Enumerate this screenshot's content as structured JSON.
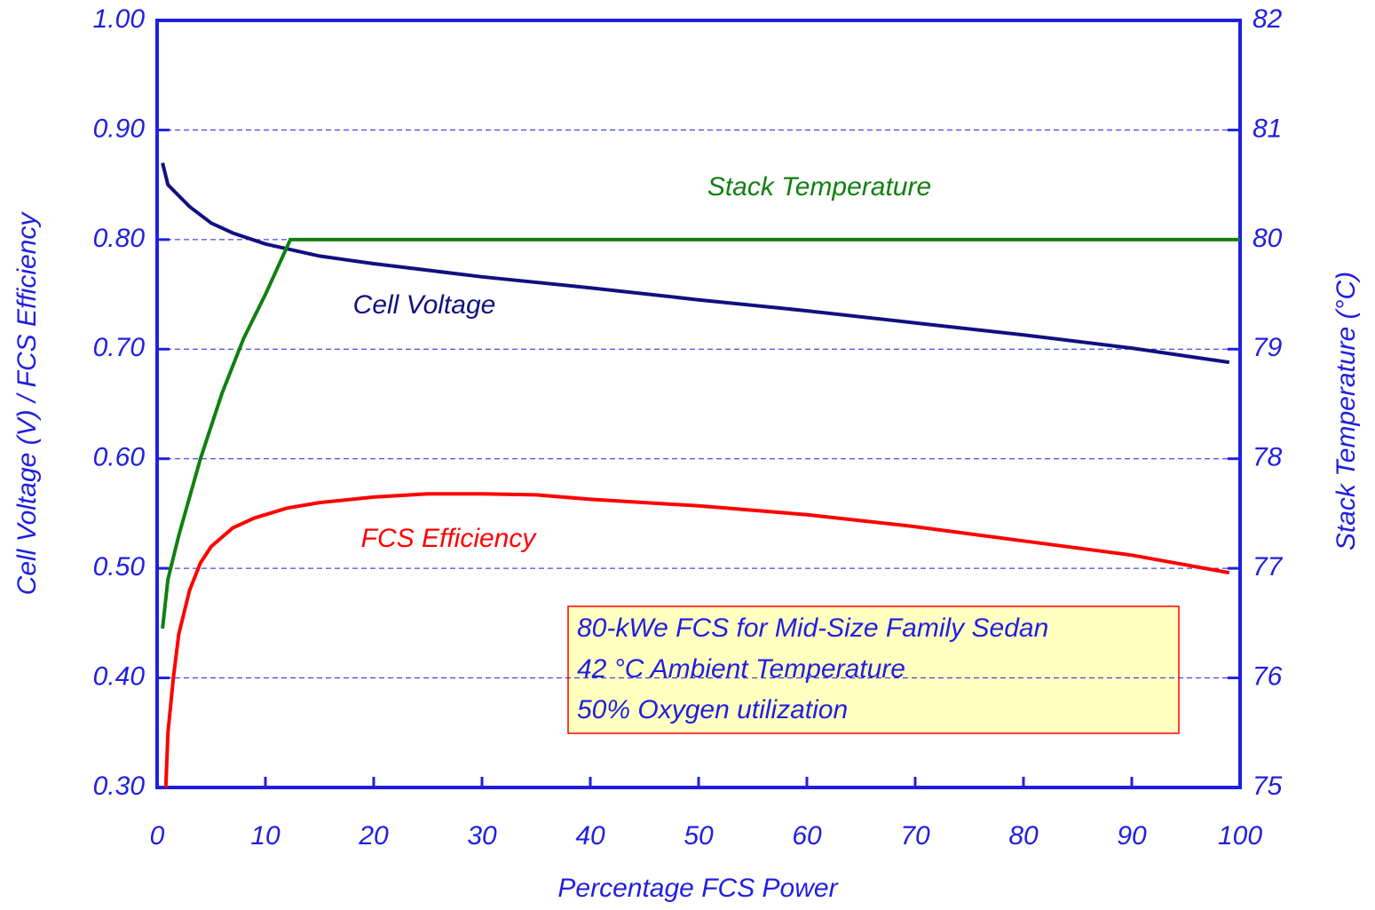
{
  "chart_data": {
    "type": "line",
    "xlabel": "Percentage FCS Power",
    "ylabel": "Cell Voltage (V) / FCS Efficiency",
    "y2label": "Stack Temperature (°C)",
    "xlim": [
      0,
      100
    ],
    "xticks": [
      0,
      10,
      20,
      30,
      40,
      50,
      60,
      70,
      80,
      90,
      100
    ],
    "ylim": [
      0.3,
      1.0
    ],
    "yticks": [
      {
        "value": 0.3,
        "label": "0.30"
      },
      {
        "value": 0.4,
        "label": "0.40"
      },
      {
        "value": 0.5,
        "label": "0.50"
      },
      {
        "value": 0.6,
        "label": "0.60"
      },
      {
        "value": 0.7,
        "label": "0.70"
      },
      {
        "value": 0.8,
        "label": "0.80"
      },
      {
        "value": 0.9,
        "label": "0.90"
      },
      {
        "value": 1.0,
        "label": "1.00"
      }
    ],
    "y2lim": [
      75,
      82
    ],
    "y2ticks": [
      75,
      76,
      77,
      78,
      79,
      80,
      81,
      82
    ],
    "grid": true,
    "series": [
      {
        "name": "Cell Voltage",
        "color": "#101080",
        "x": [
          0.5,
          1,
          2,
          3,
          5,
          7,
          10,
          15,
          20,
          25,
          30,
          40,
          50,
          60,
          70,
          80,
          90,
          99
        ],
        "values": [
          0.87,
          0.85,
          0.84,
          0.83,
          0.815,
          0.806,
          0.796,
          0.785,
          0.778,
          0.772,
          0.766,
          0.756,
          0.745,
          0.735,
          0.724,
          0.713,
          0.701,
          0.688
        ]
      },
      {
        "name": "FCS Efficiency",
        "color": "#ff0000",
        "x": [
          0.8,
          1,
          1.5,
          2,
          3,
          4,
          5,
          7,
          9,
          12,
          15,
          20,
          25,
          30,
          35,
          40,
          50,
          60,
          70,
          80,
          90,
          99
        ],
        "values": [
          0.3,
          0.35,
          0.4,
          0.44,
          0.48,
          0.505,
          0.52,
          0.537,
          0.546,
          0.555,
          0.56,
          0.565,
          0.568,
          0.568,
          0.567,
          0.563,
          0.557,
          0.549,
          0.538,
          0.525,
          0.512,
          0.496
        ]
      },
      {
        "name": "Stack Temperature",
        "color": "#108010",
        "axis": "y2",
        "x": [
          0.5,
          1,
          2,
          4,
          6,
          8,
          10,
          12.3,
          20,
          100
        ],
        "values": [
          76.45,
          76.9,
          77.3,
          78.0,
          78.6,
          79.1,
          79.5,
          80.0,
          80.0,
          80.0
        ]
      }
    ],
    "notes": [
      "80-kWe FCS for Mid-Size Family Sedan",
      "42 °C Ambient Temperature",
      "50% Oxygen utilization"
    ]
  }
}
